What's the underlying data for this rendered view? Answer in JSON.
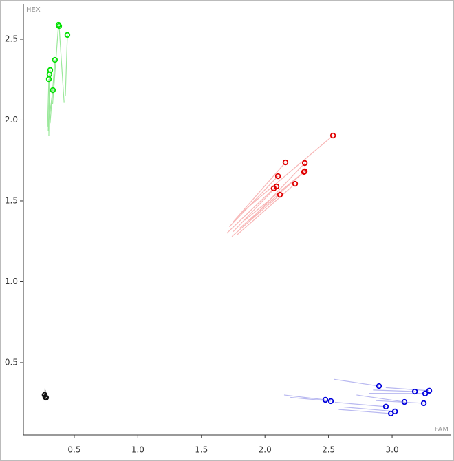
{
  "chart_data": {
    "type": "scatter",
    "x_label": "FAM",
    "y_label": "HEX",
    "xlim": [
      0.1,
      3.465
    ],
    "ylim": [
      0.053,
      2.717
    ],
    "xticks": [
      0.5,
      {
        "value": 1,
        "label": "1.0"
      },
      1.5,
      {
        "value": 2,
        "label": "2.0"
      },
      2.5,
      {
        "value": 3,
        "label": "3.0"
      }
    ],
    "yticks": [
      0.5,
      {
        "value": 1,
        "label": "1.0"
      },
      1.5,
      {
        "value": 2,
        "label": "2.0"
      },
      2.5
    ],
    "series": [
      {
        "color": "#00e000",
        "trail_color": "#9be89b",
        "x": [
          0.376,
          0.381,
          0.446,
          0.348,
          0.311,
          0.305,
          0.3,
          0.332
        ],
        "y": [
          2.589,
          2.581,
          2.526,
          2.372,
          2.309,
          2.283,
          2.253,
          2.185
        ],
        "trail_x": [
          0.33,
          0.42,
          0.43,
          0.31,
          0.295,
          0.3,
          0.29,
          0.3
        ],
        "trail_y": [
          2.1,
          2.11,
          2.15,
          1.98,
          1.93,
          1.9,
          1.96,
          2.0
        ]
      },
      {
        "color": "#e00000",
        "trail_color": "#f7b5b5",
        "x": [
          2.535,
          2.161,
          2.313,
          2.102,
          2.307,
          2.313,
          2.091,
          2.069,
          2.237,
          2.118
        ],
        "y": [
          1.904,
          1.738,
          1.734,
          1.653,
          1.679,
          1.683,
          1.589,
          1.577,
          1.606,
          1.538
        ],
        "trail_x": [
          1.82,
          1.75,
          1.86,
          1.72,
          1.84,
          1.8,
          1.75,
          1.7,
          1.78,
          1.74
        ],
        "trail_y": [
          1.43,
          1.37,
          1.36,
          1.34,
          1.38,
          1.33,
          1.31,
          1.3,
          1.29,
          1.28
        ]
      },
      {
        "color": "#0000dd",
        "trail_color": "#b8b8f0",
        "x": [
          2.897,
          3.179,
          3.292,
          3.26,
          3.097,
          3.249,
          2.475,
          2.518,
          2.951,
          3.022,
          2.99
        ],
        "y": [
          0.355,
          0.321,
          0.326,
          0.309,
          0.257,
          0.249,
          0.27,
          0.262,
          0.228,
          0.198,
          0.185
        ],
        "trail_x": [
          2.54,
          2.85,
          2.95,
          2.82,
          2.72,
          2.87,
          2.15,
          2.2,
          2.55,
          2.62,
          2.58
        ],
        "trail_y": [
          0.397,
          0.33,
          0.345,
          0.31,
          0.3,
          0.265,
          0.3,
          0.285,
          0.255,
          0.225,
          0.21
        ]
      },
      {
        "color": "#111111",
        "trail_color": "#bbbbbb",
        "x": [
          0.267,
          0.273,
          0.278
        ],
        "y": [
          0.3,
          0.287,
          0.283
        ],
        "trail_x": [
          0.27,
          0.275,
          0.28
        ],
        "trail_y": [
          0.34,
          0.33,
          0.32
        ]
      }
    ]
  }
}
